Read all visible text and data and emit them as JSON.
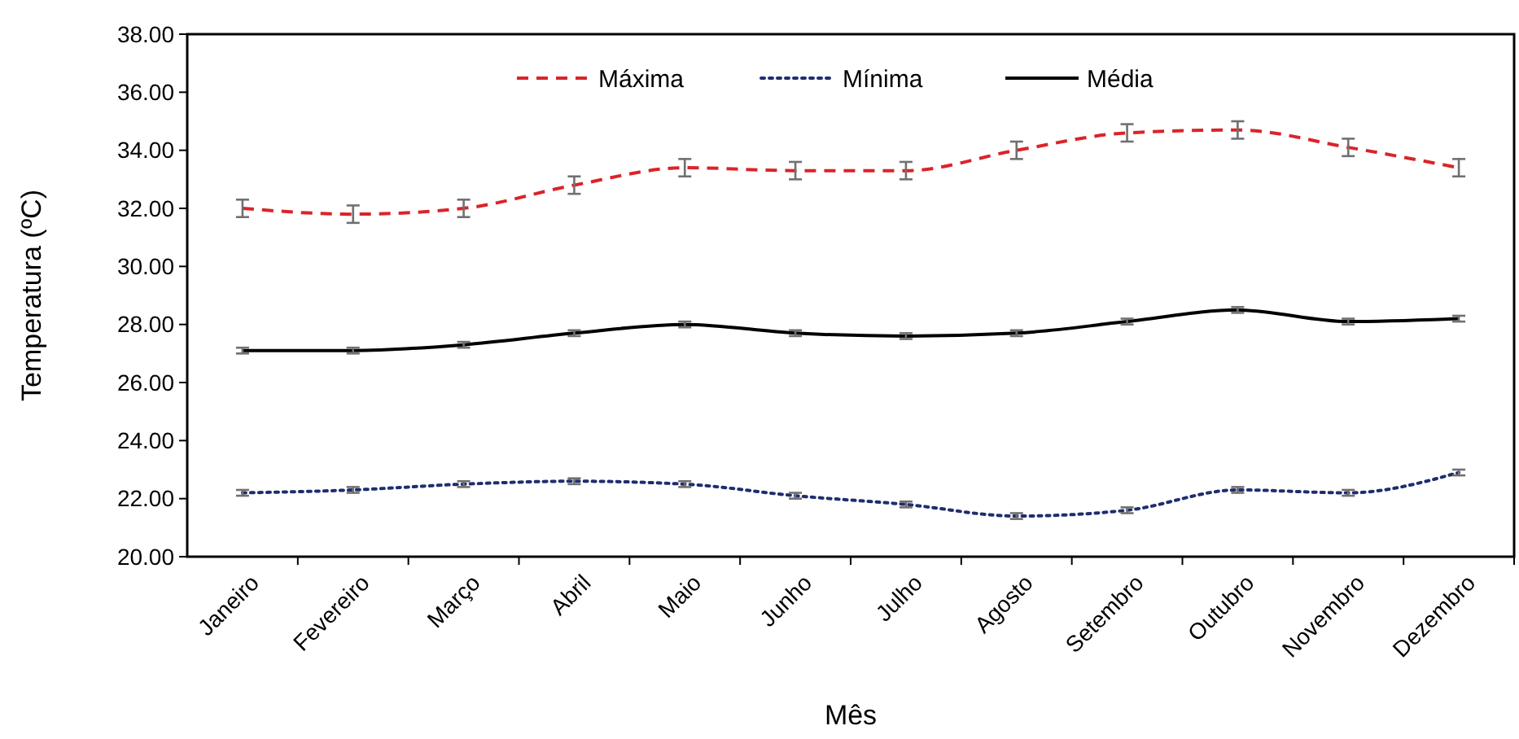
{
  "chart_data": {
    "type": "line",
    "xlabel": "Mês",
    "ylabel": "Temperatura (ºC)",
    "categories": [
      "Janeiro",
      "Fevereiro",
      "Março",
      "Abril",
      "Maio",
      "Junho",
      "Julho",
      "Agosto",
      "Setembro",
      "Outubro",
      "Novembro",
      "Dezembro"
    ],
    "series": [
      {
        "name": "Máxima",
        "color": "#d9242a",
        "line_style": "dashed",
        "values": [
          32.0,
          31.8,
          32.0,
          32.8,
          33.4,
          33.3,
          33.3,
          34.0,
          34.6,
          34.7,
          34.1,
          33.4
        ],
        "errors": [
          0.3,
          0.3,
          0.3,
          0.3,
          0.3,
          0.3,
          0.3,
          0.3,
          0.3,
          0.3,
          0.3,
          0.3
        ]
      },
      {
        "name": "Mínima",
        "color": "#1f2d6e",
        "line_style": "dotted",
        "values": [
          22.2,
          22.3,
          22.5,
          22.6,
          22.5,
          22.1,
          21.8,
          21.4,
          21.6,
          22.3,
          22.2,
          22.9
        ],
        "errors": [
          0.1,
          0.1,
          0.1,
          0.1,
          0.1,
          0.1,
          0.1,
          0.1,
          0.1,
          0.1,
          0.1,
          0.1
        ]
      },
      {
        "name": "Média",
        "color": "#000000",
        "line_style": "solid",
        "values": [
          27.1,
          27.1,
          27.3,
          27.7,
          28.0,
          27.7,
          27.6,
          27.7,
          28.1,
          28.5,
          28.1,
          28.2
        ],
        "errors": [
          0.1,
          0.1,
          0.1,
          0.1,
          0.1,
          0.1,
          0.1,
          0.1,
          0.1,
          0.1,
          0.1,
          0.1
        ]
      }
    ],
    "ylim": [
      20,
      38
    ],
    "yticks": [
      {
        "value": 20,
        "label": "20.00"
      },
      {
        "value": 22,
        "label": "22.00"
      },
      {
        "value": 24,
        "label": "24.00"
      },
      {
        "value": 26,
        "label": "26.00"
      },
      {
        "value": 28,
        "label": "28.00"
      },
      {
        "value": 30,
        "label": "30.00"
      },
      {
        "value": 32,
        "label": "32.00"
      },
      {
        "value": 34,
        "label": "34.00"
      },
      {
        "value": 36,
        "label": "36.00"
      },
      {
        "value": 38,
        "label": "38.00"
      }
    ],
    "grid": false,
    "legend": "top",
    "marker": "none"
  }
}
